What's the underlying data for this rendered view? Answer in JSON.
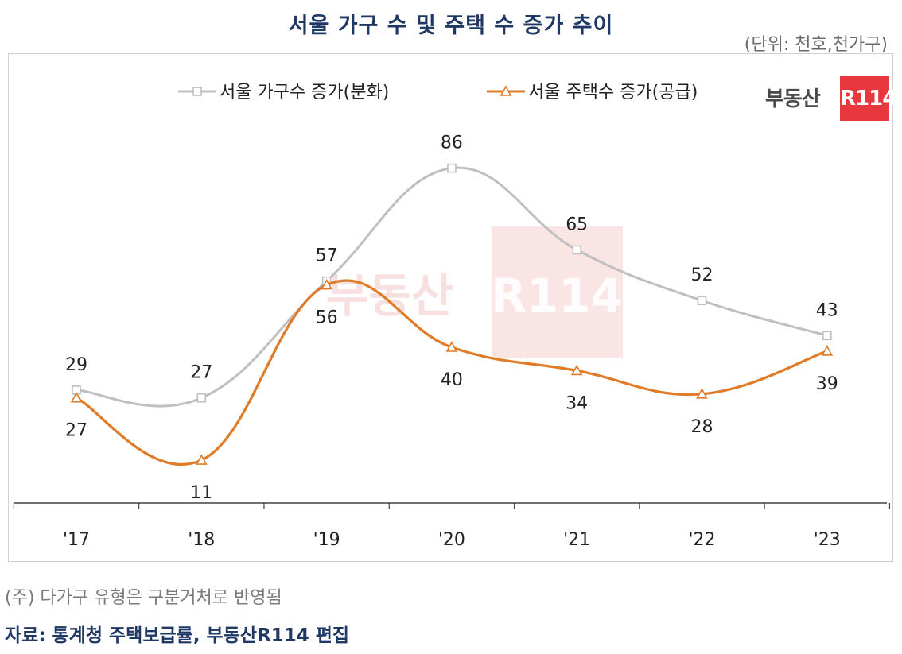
{
  "header": {
    "title": "서울 가구 수 및 주택 수 증가 추이",
    "unit": "(단위: 천호,천가구)"
  },
  "logo": {
    "text": "부동산",
    "badge": "R114",
    "icon": "r114-logo-icon"
  },
  "footer": {
    "note": "(주) 다가구 유형은 구분거처로 반영됨",
    "source": "자료: 통계청 주택보급률, 부동산R114 편집"
  },
  "colors": {
    "title": "#1f3864",
    "household": "#bfbfbf",
    "housing": "#e07b28",
    "axis": "#404040",
    "logo_badge": "#e8383d",
    "watermark": "#f6d3d3"
  },
  "chart_data": {
    "type": "line",
    "title": "서울 가구 수 및 주택 수 증가 추이",
    "xlabel": "",
    "ylabel": "(단위: 천호,천가구)",
    "categories": [
      "'17",
      "'18",
      "'19",
      "'20",
      "'21",
      "'22",
      "'23"
    ],
    "ylim": [
      0,
      100
    ],
    "grid": false,
    "legend_position": "top",
    "series": [
      {
        "name": "서울 가구수 증가(분화)",
        "values": [
          29,
          27,
          57,
          86,
          65,
          52,
          43
        ],
        "labels": [
          "29",
          "27",
          "57",
          "86",
          "65",
          "52",
          "43"
        ],
        "marker": "square",
        "color": "#bfbfbf",
        "label_side": "above"
      },
      {
        "name": "서울 주택수 증가(공급)",
        "values": [
          27,
          11,
          56,
          40,
          34,
          28,
          39
        ],
        "labels": [
          "27",
          "11",
          "56",
          "40",
          "34",
          "28",
          "39"
        ],
        "marker": "triangle",
        "color": "#e07b28",
        "label_side": "below"
      }
    ]
  }
}
